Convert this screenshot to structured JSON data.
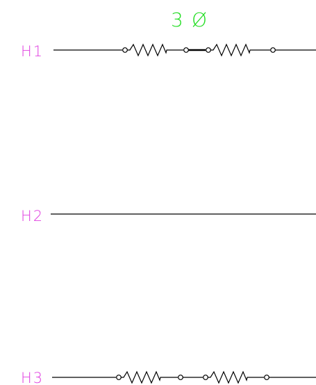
{
  "diagram": {
    "title_number": "3",
    "title_symbol": "Ø",
    "lines": [
      {
        "label": "H1",
        "resistors": 2,
        "jumper": "solid"
      },
      {
        "label": "H2",
        "resistors": 0,
        "jumper": "none"
      },
      {
        "label": "H3",
        "resistors": 2,
        "jumper": "wire"
      }
    ],
    "colors": {
      "title": "#22dd22",
      "labels": "#e040e0",
      "lines": "#000000"
    }
  }
}
